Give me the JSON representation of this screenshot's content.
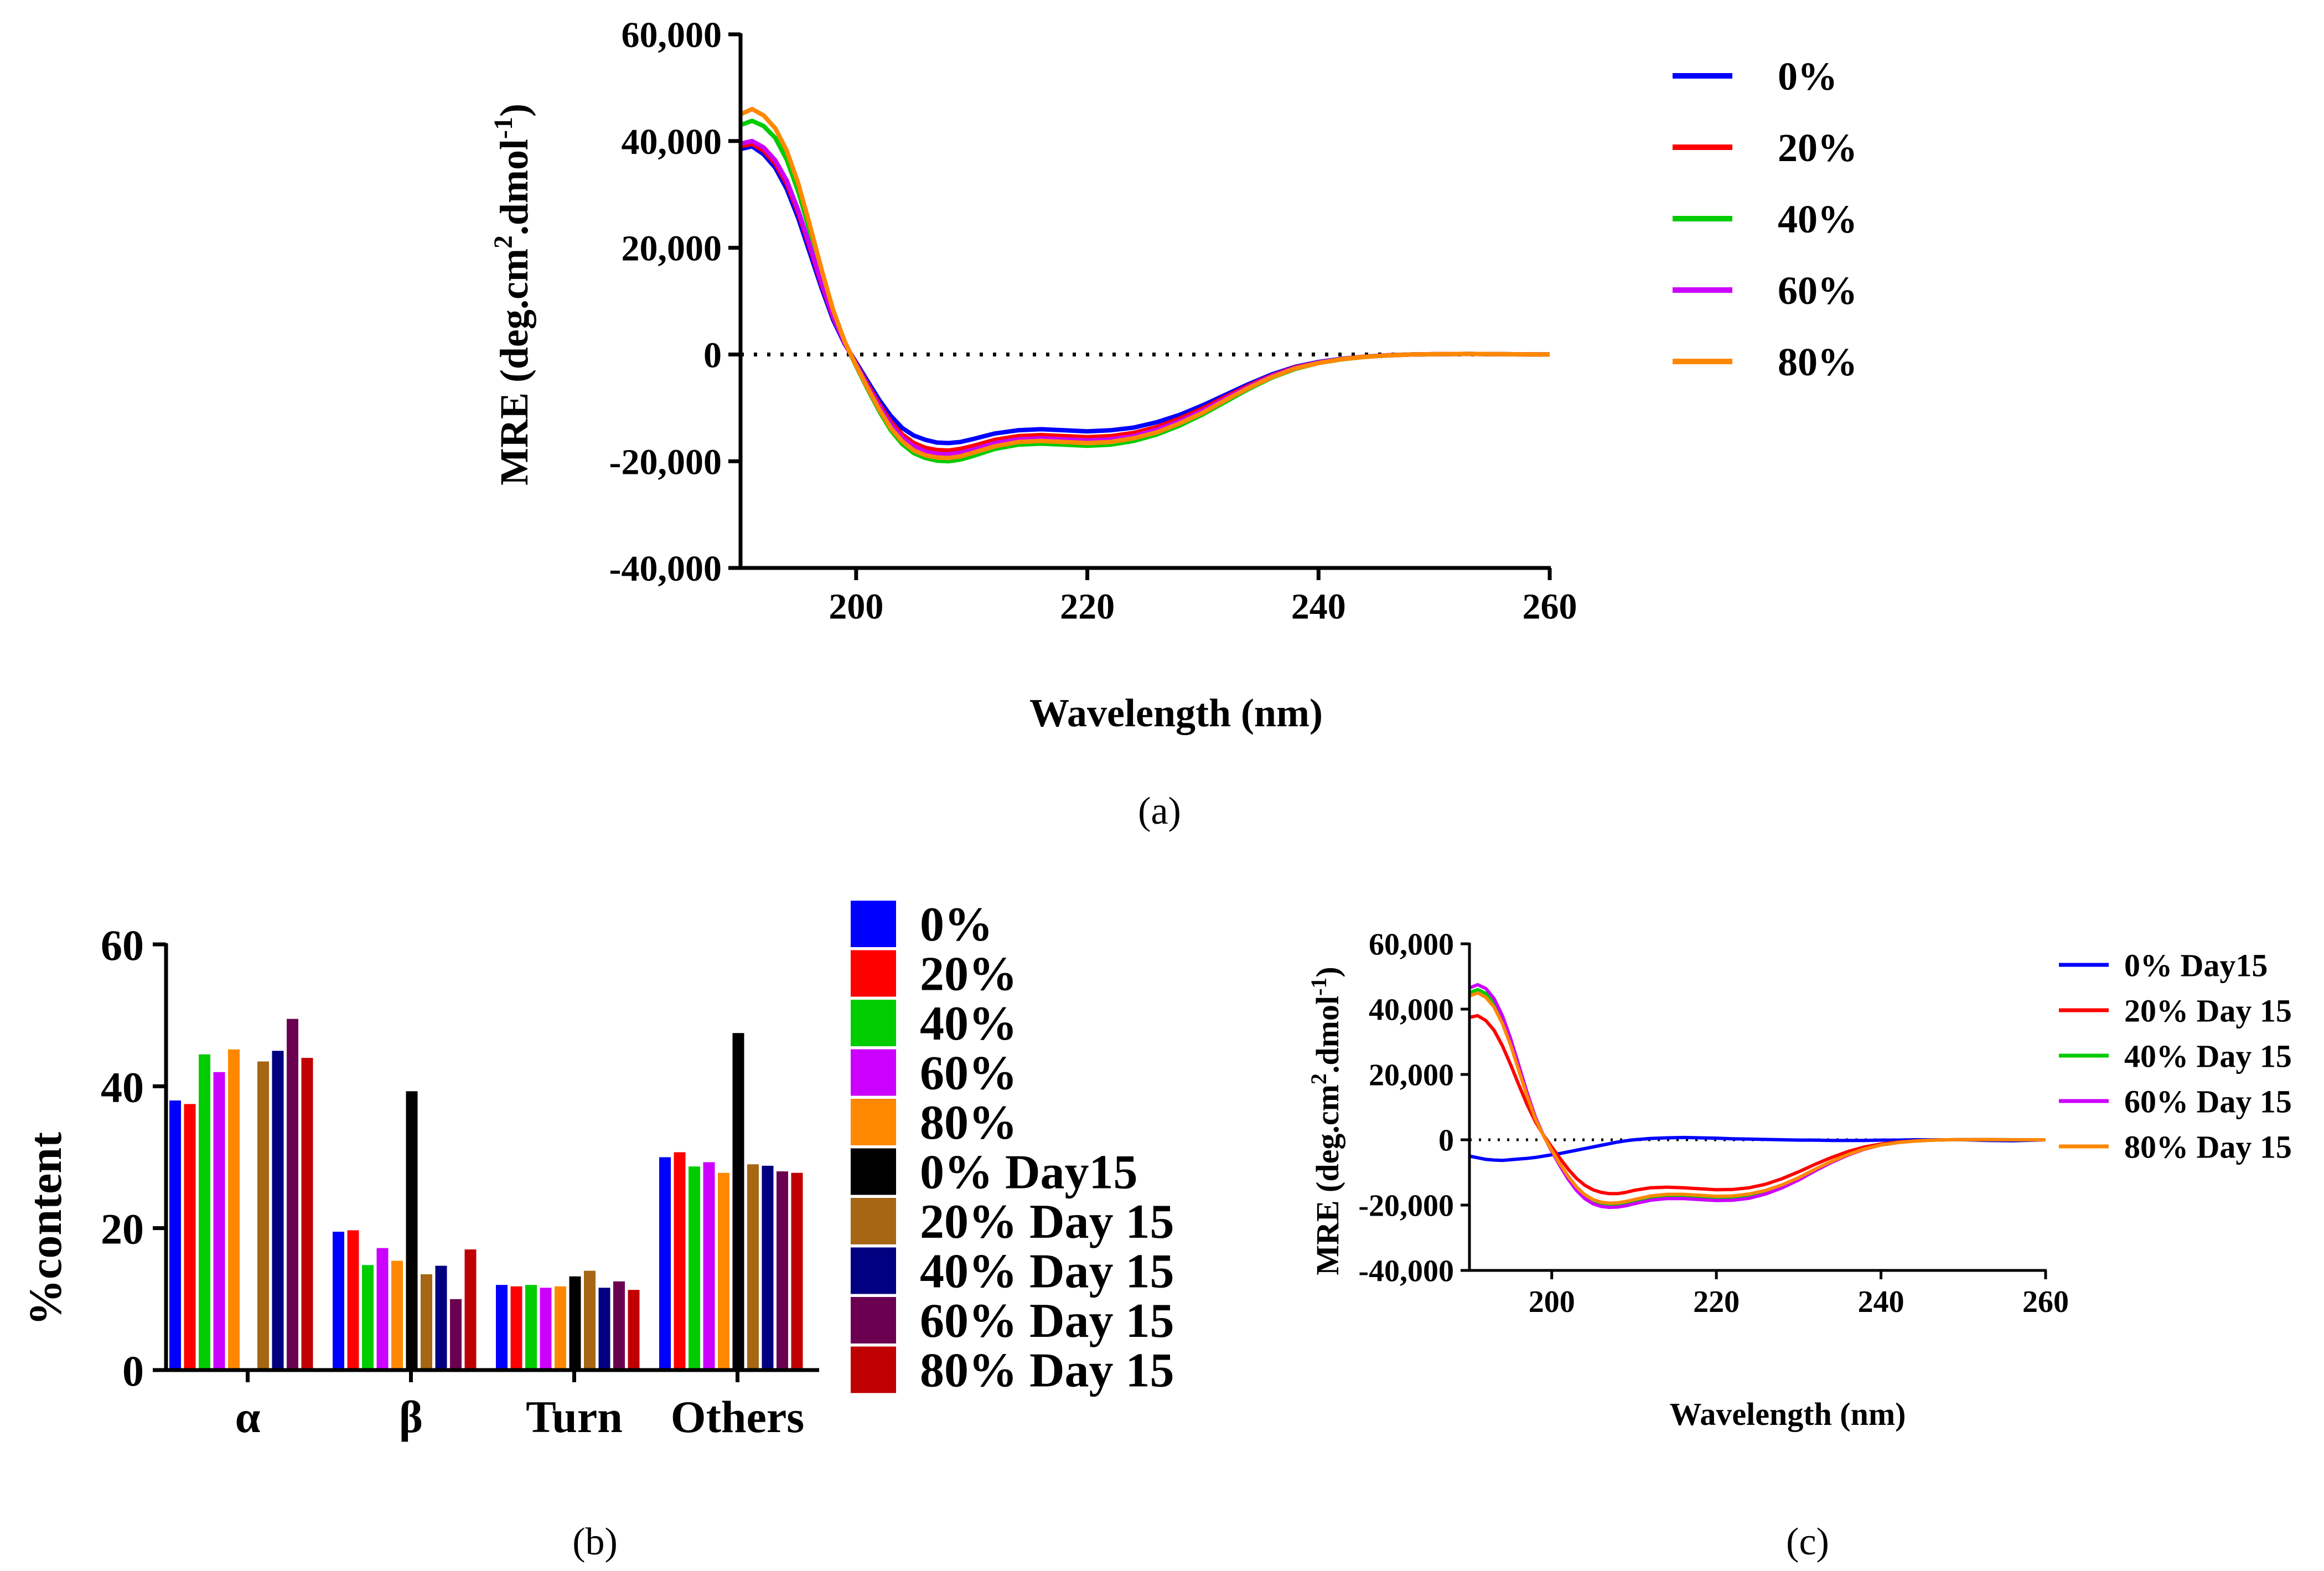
{
  "figure": {
    "panel_labels": [
      "(a)",
      "(b)",
      "(c)"
    ]
  },
  "chart_data": [
    {
      "id": "a",
      "type": "line",
      "title": "",
      "xlabel": "Wavelength (nm)",
      "ylabel_text": "MRE (deg.cm",
      "ylabel_sup1": "2",
      "ylabel_mid": ".dmol",
      "ylabel_sup2": "-1",
      "ylabel_end": ")",
      "xlim": [
        190,
        260
      ],
      "ylim": [
        -40000,
        60000
      ],
      "xticks": [
        200,
        220,
        240,
        260
      ],
      "xtick_labels": [
        "200",
        "220",
        "240",
        "260"
      ],
      "yticks": [
        -40000,
        -20000,
        0,
        20000,
        40000,
        60000
      ],
      "ytick_labels": [
        "-40,000",
        "-20,000",
        "0",
        "20,000",
        "40,000",
        "60,000"
      ],
      "zero_line": true,
      "x": [
        190,
        191,
        192,
        193,
        194,
        195,
        196,
        197,
        198,
        199,
        200,
        201,
        202,
        203,
        204,
        205,
        206,
        207,
        208,
        209,
        210,
        212,
        214,
        216,
        218,
        220,
        222,
        224,
        226,
        228,
        230,
        232,
        234,
        236,
        238,
        240,
        242,
        244,
        246,
        248,
        250,
        253,
        256,
        260
      ],
      "series": [
        {
          "name": "0%",
          "color": "#0000ff",
          "values": [
            38500,
            39000,
            37500,
            35000,
            31000,
            25500,
            19000,
            12500,
            6500,
            2000,
            -1500,
            -5000,
            -8500,
            -11500,
            -13800,
            -15200,
            -16000,
            -16500,
            -16600,
            -16400,
            -15900,
            -14800,
            -14200,
            -14000,
            -14200,
            -14400,
            -14200,
            -13700,
            -12700,
            -11300,
            -9500,
            -7500,
            -5500,
            -3700,
            -2300,
            -1400,
            -800,
            -400,
            -150,
            0,
            50,
            100,
            50,
            0
          ]
        },
        {
          "name": "20%",
          "color": "#ff0000",
          "values": [
            39000,
            39500,
            38200,
            35800,
            32000,
            26500,
            20000,
            13200,
            7000,
            2200,
            -1800,
            -5600,
            -9300,
            -12600,
            -15000,
            -16600,
            -17500,
            -17900,
            -18000,
            -17700,
            -17200,
            -16000,
            -15300,
            -15100,
            -15300,
            -15500,
            -15300,
            -14700,
            -13600,
            -12000,
            -10100,
            -7900,
            -5800,
            -3900,
            -2400,
            -1500,
            -850,
            -420,
            -160,
            0,
            50,
            100,
            50,
            0
          ]
        },
        {
          "name": "40%",
          "color": "#00cc00",
          "values": [
            43000,
            43800,
            42800,
            40600,
            36500,
            30500,
            23000,
            15200,
            8000,
            2400,
            -2200,
            -6500,
            -10600,
            -14200,
            -16800,
            -18500,
            -19400,
            -19900,
            -20000,
            -19700,
            -19100,
            -17700,
            -16900,
            -16700,
            -16900,
            -17100,
            -16900,
            -16200,
            -15000,
            -13300,
            -11200,
            -8800,
            -6400,
            -4300,
            -2700,
            -1600,
            -900,
            -450,
            -170,
            0,
            50,
            100,
            50,
            0
          ]
        },
        {
          "name": "60%",
          "color": "#cc00ff",
          "values": [
            39500,
            40000,
            38800,
            36400,
            32600,
            27000,
            20400,
            13500,
            7200,
            2200,
            -1900,
            -5900,
            -9700,
            -13100,
            -15600,
            -17200,
            -18200,
            -18600,
            -18700,
            -18400,
            -17900,
            -16600,
            -15900,
            -15700,
            -15900,
            -16100,
            -15900,
            -15300,
            -14100,
            -12500,
            -10500,
            -8200,
            -6000,
            -4000,
            -2500,
            -1500,
            -860,
            -430,
            -160,
            0,
            50,
            100,
            50,
            0
          ]
        },
        {
          "name": "80%",
          "color": "#ff8800",
          "values": [
            45000,
            46000,
            44800,
            42400,
            38200,
            32000,
            24200,
            16000,
            8400,
            2500,
            -2100,
            -6300,
            -10300,
            -13800,
            -16300,
            -18000,
            -18900,
            -19300,
            -19400,
            -19100,
            -18500,
            -17200,
            -16400,
            -16200,
            -16400,
            -16600,
            -16400,
            -15700,
            -14600,
            -12900,
            -10900,
            -8500,
            -6200,
            -4200,
            -2600,
            -1600,
            -880,
            -440,
            -165,
            0,
            50,
            100,
            50,
            0
          ]
        }
      ]
    },
    {
      "id": "b",
      "type": "bar",
      "title": "",
      "xlabel": "",
      "ylabel": "%content",
      "ylim": [
        0,
        60
      ],
      "yticks": [
        0,
        20,
        40,
        60
      ],
      "ytick_labels": [
        "0",
        "20",
        "40",
        "60"
      ],
      "categories": [
        "α",
        "β",
        "Turn",
        "Others"
      ],
      "series": [
        {
          "name": "0%",
          "color": "#0000ff",
          "values": [
            38,
            19.5,
            12,
            30
          ]
        },
        {
          "name": "20%",
          "color": "#ff0000",
          "values": [
            37.5,
            19.7,
            11.8,
            30.7
          ]
        },
        {
          "name": "40%",
          "color": "#00cc00",
          "values": [
            44.5,
            14.8,
            12,
            28.7
          ]
        },
        {
          "name": "60%",
          "color": "#cc00ff",
          "values": [
            42,
            17.2,
            11.6,
            29.3
          ]
        },
        {
          "name": "80%",
          "color": "#ff8800",
          "values": [
            45.2,
            15.4,
            11.8,
            27.8
          ]
        },
        {
          "name": "0% Day15",
          "color": "#000000",
          "values": [
            0,
            39.3,
            13.2,
            47.5
          ]
        },
        {
          "name": "20% Day 15",
          "color": "#a66614",
          "values": [
            43.5,
            13.5,
            14,
            29
          ]
        },
        {
          "name": "40% Day 15",
          "color": "#000080",
          "values": [
            45,
            14.7,
            11.6,
            28.8
          ]
        },
        {
          "name": "60% Day 15",
          "color": "#6b0050",
          "values": [
            49.5,
            10,
            12.5,
            28
          ]
        },
        {
          "name": "80% Day 15",
          "color": "#c00000",
          "values": [
            44,
            17,
            11.3,
            27.8
          ]
        }
      ]
    },
    {
      "id": "c",
      "type": "line",
      "title": "",
      "xlabel": "Wavelength (nm)",
      "ylabel_text": "MRE (deg.cm",
      "ylabel_sup1": "2",
      "ylabel_mid": ".dmol",
      "ylabel_sup2": "-1",
      "ylabel_end": ")",
      "xlim": [
        190,
        260
      ],
      "ylim": [
        -40000,
        60000
      ],
      "xticks": [
        200,
        220,
        240,
        260
      ],
      "xtick_labels": [
        "200",
        "220",
        "240",
        "260"
      ],
      "yticks": [
        -40000,
        -20000,
        0,
        20000,
        40000,
        60000
      ],
      "ytick_labels": [
        "-40,000",
        "-20,000",
        "0",
        "20,000",
        "40,000",
        "60,000"
      ],
      "zero_line": true,
      "x": [
        190,
        191,
        192,
        193,
        194,
        195,
        196,
        197,
        198,
        199,
        200,
        201,
        202,
        203,
        204,
        205,
        206,
        207,
        208,
        209,
        210,
        212,
        214,
        216,
        218,
        220,
        222,
        224,
        226,
        228,
        230,
        232,
        234,
        236,
        238,
        240,
        242,
        244,
        246,
        248,
        250,
        253,
        256,
        260
      ],
      "series": [
        {
          "name": "0% Day15",
          "color": "#0000ff",
          "values": [
            -5000,
            -5500,
            -6000,
            -6200,
            -6300,
            -6100,
            -5900,
            -5700,
            -5400,
            -5000,
            -4600,
            -4200,
            -3700,
            -3200,
            -2700,
            -2200,
            -1700,
            -1200,
            -700,
            -300,
            0,
            400,
            600,
            700,
            600,
            500,
            300,
            200,
            100,
            0,
            -100,
            -100,
            -200,
            -200,
            -200,
            -100,
            -100,
            0,
            0,
            0,
            0,
            -200,
            -300,
            0
          ]
        },
        {
          "name": "20% Day 15",
          "color": "#ff0000",
          "values": [
            37500,
            38000,
            36500,
            33500,
            28800,
            23000,
            16800,
            10800,
            5600,
            1400,
            -2200,
            -5700,
            -9000,
            -11800,
            -13900,
            -15300,
            -16100,
            -16500,
            -16500,
            -16100,
            -15500,
            -14700,
            -14500,
            -14700,
            -15000,
            -15300,
            -15200,
            -14700,
            -13600,
            -11900,
            -9800,
            -7500,
            -5400,
            -3600,
            -2200,
            -1300,
            -700,
            -350,
            -100,
            0,
            50,
            50,
            0,
            0
          ]
        },
        {
          "name": "40% Day 15",
          "color": "#00cc00",
          "values": [
            45000,
            46000,
            44800,
            41800,
            36800,
            30000,
            22000,
            14000,
            6800,
            1300,
            -3300,
            -7600,
            -11600,
            -14900,
            -17400,
            -19000,
            -19800,
            -20100,
            -20000,
            -19600,
            -19000,
            -17900,
            -17400,
            -17400,
            -17700,
            -18000,
            -17900,
            -17300,
            -16100,
            -14300,
            -12000,
            -9300,
            -6800,
            -4600,
            -2800,
            -1600,
            -850,
            -400,
            -120,
            0,
            50,
            50,
            0,
            0
          ]
        },
        {
          "name": "60% Day 15",
          "color": "#cc00ff",
          "values": [
            46500,
            47500,
            46300,
            43200,
            38000,
            31000,
            22800,
            14500,
            7000,
            1300,
            -3500,
            -8000,
            -12100,
            -15500,
            -18000,
            -19600,
            -20400,
            -20700,
            -20600,
            -20200,
            -19600,
            -18500,
            -18000,
            -18000,
            -18300,
            -18600,
            -18500,
            -17900,
            -16600,
            -14700,
            -12300,
            -9500,
            -6900,
            -4700,
            -2900,
            -1600,
            -860,
            -410,
            -120,
            0,
            50,
            50,
            0,
            0
          ]
        },
        {
          "name": "80% Day 15",
          "color": "#ff8800",
          "values": [
            44000,
            45000,
            43600,
            40600,
            35600,
            29000,
            21200,
            13400,
            6400,
            1200,
            -3200,
            -7400,
            -11200,
            -14400,
            -16800,
            -18300,
            -19100,
            -19400,
            -19300,
            -18900,
            -18300,
            -17200,
            -16700,
            -16700,
            -17000,
            -17300,
            -17200,
            -16600,
            -15500,
            -13800,
            -11600,
            -9000,
            -6600,
            -4500,
            -2800,
            -1600,
            -840,
            -400,
            -120,
            0,
            50,
            50,
            0,
            0
          ]
        }
      ]
    }
  ]
}
